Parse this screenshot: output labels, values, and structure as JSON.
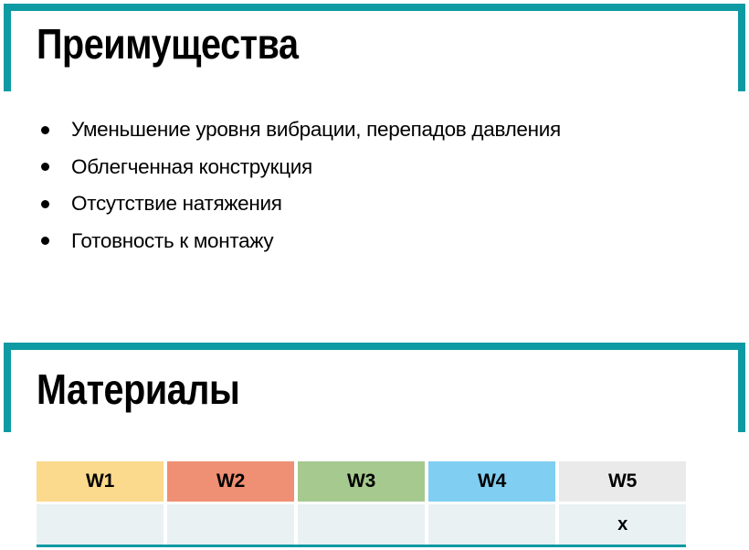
{
  "colors": {
    "accent_teal": "#0d9aa3",
    "data_row_bg": "#e9f1f3",
    "text": "#000000"
  },
  "sections": {
    "advantages": {
      "title": "Преимущества",
      "bullets": [
        "Уменьшение уровня вибрации, перепадов давления",
        "Облегченная конструкция",
        "Отсутствие натяжения",
        "Готовность к монтажу"
      ]
    },
    "materials": {
      "title": "Материалы",
      "table": {
        "columns": [
          {
            "label": "W1",
            "color": "#fbd98d"
          },
          {
            "label": "W2",
            "color": "#ef8f73"
          },
          {
            "label": "W3",
            "color": "#a6c98f"
          },
          {
            "label": "W4",
            "color": "#80cef1"
          },
          {
            "label": "W5",
            "color": "#eaeaea"
          }
        ],
        "rows": [
          {
            "cells": [
              "",
              "",
              "",
              "",
              "x"
            ]
          }
        ]
      }
    }
  }
}
